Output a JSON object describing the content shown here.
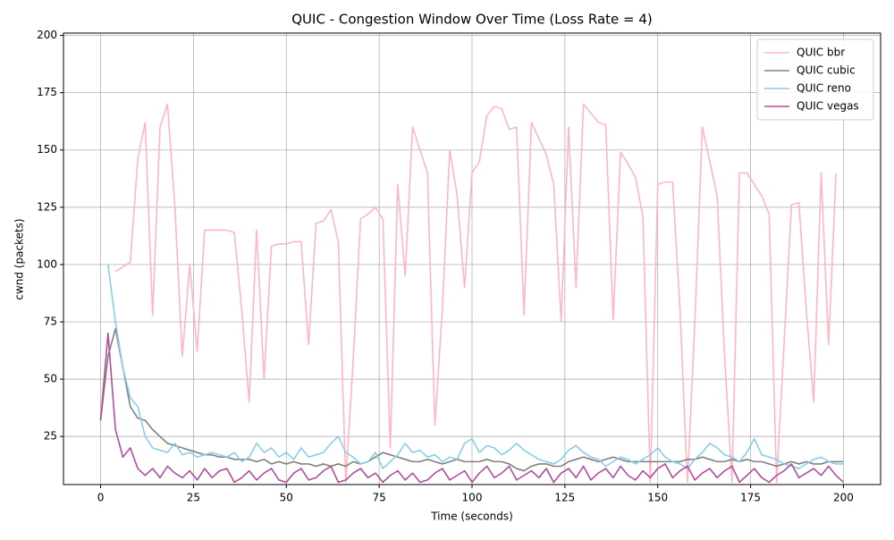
{
  "chart_data": {
    "type": "line",
    "title": "QUIC - Congestion Window Over Time (Loss Rate = 4)",
    "x_label": "Time (seconds)",
    "y_label": "cwnd (packets)",
    "xlim": [
      -10,
      210
    ],
    "ylim": [
      4,
      201
    ],
    "xticks": [
      0,
      25,
      50,
      75,
      100,
      125,
      150,
      175,
      200
    ],
    "yticks": [
      25,
      50,
      75,
      100,
      125,
      150,
      175,
      200
    ],
    "grid": true,
    "legend": "upper right",
    "x": [
      0,
      2,
      4,
      6,
      8,
      10,
      12,
      14,
      16,
      18,
      20,
      22,
      24,
      26,
      28,
      30,
      32,
      34,
      36,
      38,
      40,
      42,
      44,
      46,
      48,
      50,
      52,
      54,
      56,
      58,
      60,
      62,
      64,
      66,
      68,
      70,
      72,
      74,
      76,
      78,
      80,
      82,
      84,
      86,
      88,
      90,
      92,
      94,
      96,
      98,
      100,
      102,
      104,
      106,
      108,
      110,
      112,
      114,
      116,
      118,
      120,
      122,
      124,
      126,
      128,
      130,
      132,
      134,
      136,
      138,
      140,
      142,
      144,
      146,
      148,
      150,
      152,
      154,
      156,
      158,
      160,
      162,
      164,
      166,
      168,
      170,
      172,
      174,
      176,
      178,
      180,
      182,
      184,
      186,
      188,
      190,
      192,
      194,
      196,
      198,
      200
    ],
    "series": [
      {
        "name": "QUIC bbr",
        "color": "#ffb6c1",
        "values": [
          null,
          null,
          97,
          99,
          101,
          146,
          162,
          78,
          160,
          170,
          125,
          60,
          100,
          62,
          115,
          115,
          115,
          115,
          114,
          80,
          40,
          115,
          50,
          108,
          109,
          109,
          110,
          110,
          65,
          118,
          119,
          124,
          110,
          5,
          58,
          120,
          122,
          125,
          120,
          20,
          135,
          95,
          160,
          150,
          140,
          30,
          80,
          150,
          130,
          90,
          140,
          145,
          165,
          169,
          168,
          159,
          160,
          78,
          162,
          155,
          148,
          135,
          75,
          160,
          90,
          170,
          166,
          162,
          161,
          76,
          149,
          144,
          138,
          121,
          5,
          135,
          136,
          136,
          80,
          5,
          75,
          160,
          145,
          130,
          60,
          5,
          140,
          140,
          135,
          130,
          122,
          5,
          65,
          126,
          127,
          80,
          40,
          140,
          65,
          140,
          null
        ]
      },
      {
        "name": "QUIC cubic",
        "color": "#808080",
        "values": [
          32,
          60,
          72,
          55,
          38,
          33,
          32,
          28,
          25,
          22,
          21,
          20,
          19,
          18,
          17,
          17,
          16,
          16,
          15,
          15,
          15,
          14,
          15,
          13,
          14,
          13,
          14,
          13,
          13,
          12,
          13,
          12,
          13,
          12,
          14,
          13,
          14,
          16,
          18,
          17,
          16,
          15,
          14,
          14,
          15,
          14,
          13,
          14,
          15,
          14,
          14,
          14,
          15,
          14,
          14,
          13,
          11,
          10,
          12,
          13,
          13,
          12,
          12,
          14,
          15,
          16,
          15,
          14,
          15,
          16,
          15,
          14,
          14,
          14,
          14,
          14,
          14,
          14,
          14,
          15,
          15,
          16,
          15,
          14,
          14,
          15,
          14,
          15,
          14,
          14,
          13,
          12,
          13,
          14,
          13,
          14,
          13,
          13,
          14,
          14,
          14
        ]
      },
      {
        "name": "QUIC reno",
        "color": "#87ceeb",
        "values": [
          null,
          100,
          75,
          55,
          42,
          38,
          25,
          20,
          19,
          18,
          22,
          17,
          18,
          16,
          17,
          18,
          17,
          16,
          18,
          14,
          16,
          22,
          18,
          20,
          16,
          18,
          15,
          20,
          16,
          17,
          18,
          22,
          25,
          18,
          16,
          13,
          14,
          18,
          11,
          14,
          17,
          22,
          18,
          19,
          16,
          17,
          14,
          16,
          15,
          22,
          24,
          18,
          21,
          20,
          17,
          19,
          22,
          19,
          17,
          15,
          14,
          13,
          15,
          19,
          21,
          18,
          16,
          15,
          12,
          14,
          16,
          15,
          13,
          15,
          17,
          20,
          16,
          14,
          13,
          11,
          15,
          18,
          22,
          20,
          17,
          16,
          14,
          18,
          24,
          17,
          16,
          15,
          13,
          12,
          11,
          13,
          15,
          16,
          14,
          13,
          13
        ]
      },
      {
        "name": "QUIC vegas",
        "color": "#b24c9f",
        "values": [
          32,
          70,
          28,
          16,
          20,
          11,
          8,
          11,
          7,
          12,
          9,
          7,
          10,
          6,
          11,
          7,
          10,
          11,
          5,
          7,
          10,
          6,
          9,
          11,
          6,
          5,
          9,
          11,
          6,
          7,
          10,
          12,
          5,
          6,
          9,
          11,
          7,
          9,
          5,
          8,
          10,
          6,
          9,
          5,
          6,
          9,
          11,
          6,
          8,
          10,
          5,
          9,
          12,
          7,
          9,
          12,
          6,
          8,
          10,
          7,
          11,
          5,
          9,
          11,
          7,
          12,
          6,
          9,
          11,
          7,
          12,
          8,
          6,
          10,
          7,
          11,
          13,
          7,
          10,
          12,
          6,
          9,
          11,
          7,
          10,
          12,
          5,
          8,
          11,
          7,
          5,
          8,
          10,
          13,
          7,
          9,
          11,
          8,
          12,
          8,
          5
        ]
      }
    ]
  }
}
